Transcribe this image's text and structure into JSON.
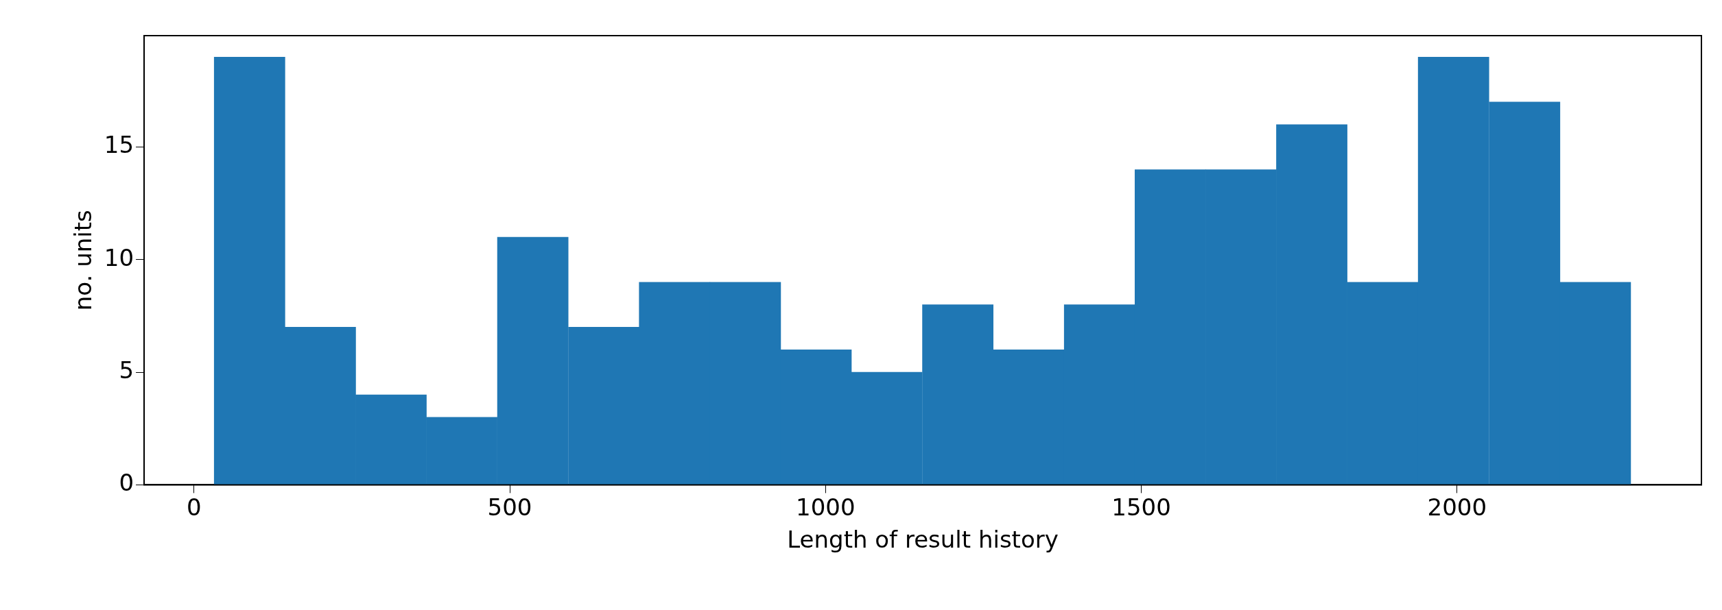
{
  "chart_data": {
    "type": "histogram",
    "xlabel": "Length of result history",
    "ylabel": "no. units",
    "color": "#1f77b4",
    "bins": [
      32,
      144,
      256,
      368,
      480,
      593,
      705,
      817,
      929,
      1041,
      1153,
      1266,
      1378,
      1490,
      1602,
      1714,
      1826,
      1938,
      2051,
      2163,
      2275
    ],
    "values": [
      19,
      7,
      4,
      3,
      11,
      7,
      9,
      9,
      6,
      5,
      8,
      6,
      8,
      14,
      14,
      16,
      9,
      19,
      17,
      9
    ],
    "xlim": [
      -79,
      2387
    ],
    "xticks": [
      0,
      500,
      1000,
      1500,
      2000
    ],
    "ylim": [
      0,
      19.95
    ],
    "yticks": [
      0,
      5,
      10,
      15
    ],
    "grid": false,
    "legend": false
  }
}
